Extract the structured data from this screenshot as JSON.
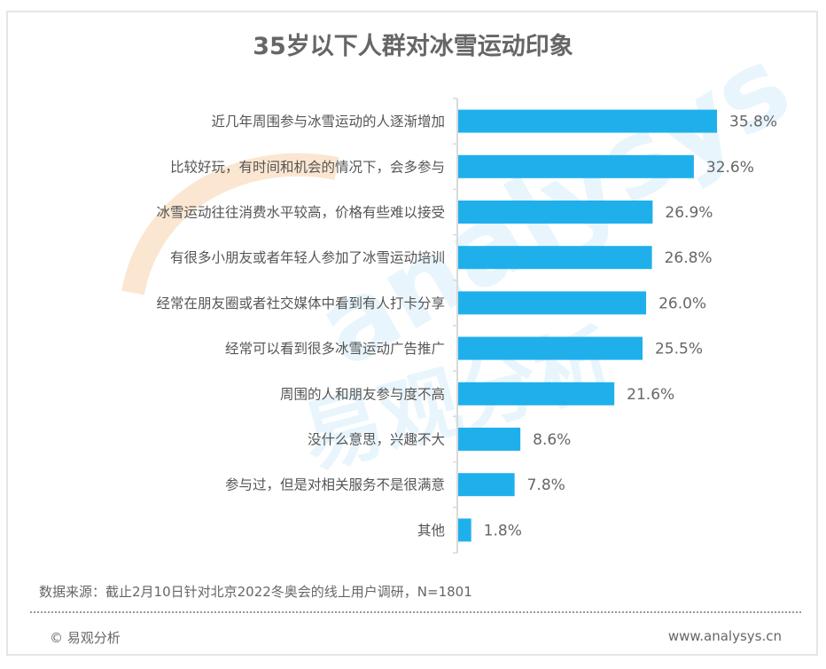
{
  "watermark": {
    "text": "analysys",
    "cn_text": "易观分析"
  },
  "footer": {
    "source": "数据来源：截止2月10日针对北京2022冬奥会的线上用户调研，N=1801",
    "copyright": "© 易观分析",
    "website": "www.analysys.cn"
  },
  "chart_data": {
    "type": "bar",
    "orientation": "horizontal",
    "title": "35岁以下人群对冰雪运动印象",
    "xlabel": "",
    "ylabel": "",
    "unit": "%",
    "xlim": [
      0,
      40
    ],
    "grid": false,
    "legend": "none",
    "bar_color": "#1fb0ec",
    "categories": [
      "近几年周围参与冰雪运动的人逐渐增加",
      "比较好玩，有时间和机会的情况下，会多参与",
      "冰雪运动往往消费水平较高，价格有些难以接受",
      "有很多小朋友或者年轻人参加了冰雪运动培训",
      "经常在朋友圈或者社交媒体中看到有人打卡分享",
      "经常可以看到很多冰雪运动广告推广",
      "周围的人和朋友参与度不高",
      "没什么意思，兴趣不大",
      "参与过，但是对相关服务不是很满意",
      "其他"
    ],
    "values": [
      35.8,
      32.6,
      26.9,
      26.8,
      26.0,
      25.5,
      21.6,
      8.6,
      7.8,
      1.8
    ],
    "value_labels": [
      "35.8%",
      "32.6%",
      "26.9%",
      "26.8%",
      "26.0%",
      "25.5%",
      "21.6%",
      "8.6%",
      "7.8%",
      "1.8%"
    ]
  }
}
